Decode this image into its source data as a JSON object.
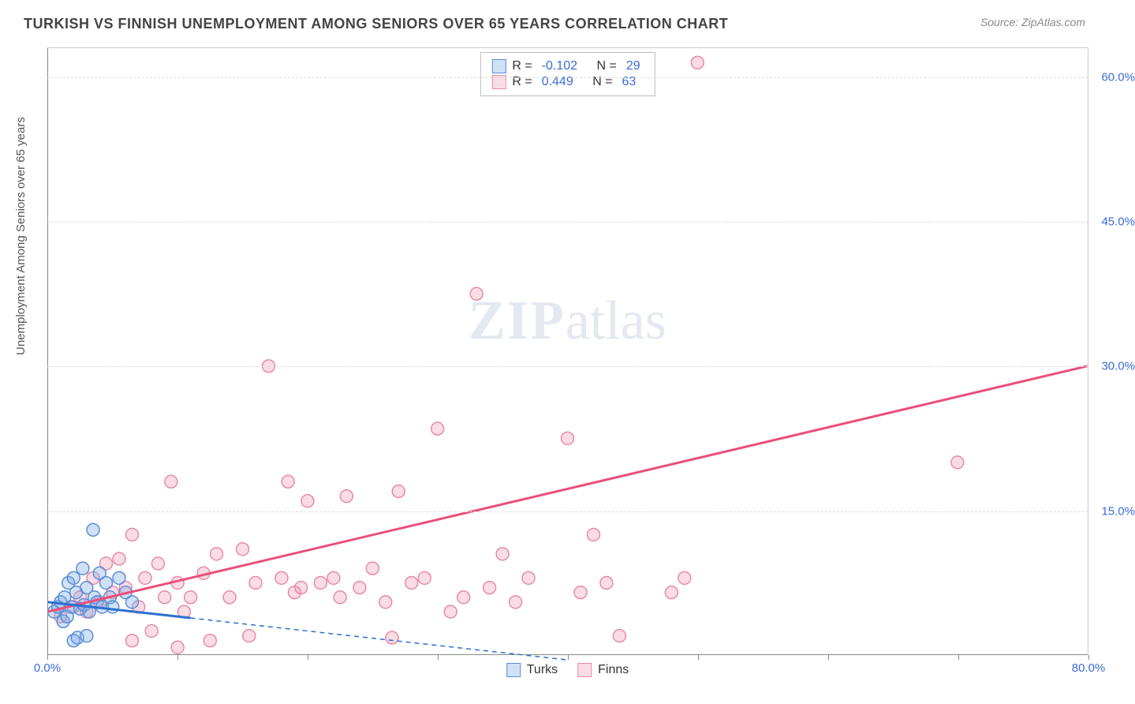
{
  "header": {
    "title": "TURKISH VS FINNISH UNEMPLOYMENT AMONG SENIORS OVER 65 YEARS CORRELATION CHART",
    "source": "Source: ZipAtlas.com"
  },
  "watermark": {
    "zip": "ZIP",
    "atlas": "atlas"
  },
  "chart": {
    "type": "scatter",
    "ylabel": "Unemployment Among Seniors over 65 years",
    "xlim": [
      0,
      80
    ],
    "ylim": [
      0,
      63
    ],
    "xtick_labels": {
      "min": "0.0%",
      "max": "80.0%"
    },
    "xtick_positions": [
      0,
      10,
      20,
      30,
      40,
      50,
      60,
      70,
      80
    ],
    "ytick_labels": [
      "15.0%",
      "30.0%",
      "45.0%",
      "60.0%"
    ],
    "ytick_values": [
      15,
      30,
      45,
      60
    ],
    "background_color": "#ffffff",
    "grid_color": "#dddddd",
    "axis_color": "#888888",
    "tick_label_color": "#3b6bd6",
    "marker_radius": 8,
    "series": {
      "turks": {
        "label": "Turks",
        "fill": "rgba(120,170,230,0.35)",
        "stroke": "#5a8ed8",
        "R": "-0.102",
        "N": "29",
        "trend": {
          "type": "solid-then-dashed",
          "x1": 0,
          "y1": 5.5,
          "x2": 40,
          "y2": -0.5,
          "solid_until_x": 11,
          "color": "#2f6fd0",
          "width": 3
        },
        "points": [
          [
            0.5,
            4.5
          ],
          [
            0.8,
            5.0
          ],
          [
            1.0,
            5.5
          ],
          [
            1.2,
            3.5
          ],
          [
            1.3,
            6.0
          ],
          [
            1.5,
            4.0
          ],
          [
            1.6,
            7.5
          ],
          [
            1.8,
            5.0
          ],
          [
            2.0,
            8.0
          ],
          [
            2.2,
            6.5
          ],
          [
            2.5,
            4.8
          ],
          [
            2.7,
            9.0
          ],
          [
            2.8,
            5.2
          ],
          [
            3.0,
            7.0
          ],
          [
            3.2,
            4.5
          ],
          [
            3.5,
            13.0
          ],
          [
            3.6,
            6.0
          ],
          [
            3.8,
            5.5
          ],
          [
            4.0,
            8.5
          ],
          [
            4.2,
            5.0
          ],
          [
            4.5,
            7.5
          ],
          [
            4.8,
            6.0
          ],
          [
            5.0,
            5.0
          ],
          [
            5.5,
            8.0
          ],
          [
            2.0,
            1.5
          ],
          [
            2.3,
            1.8
          ],
          [
            3.0,
            2.0
          ],
          [
            6.0,
            6.5
          ],
          [
            6.5,
            5.5
          ]
        ]
      },
      "finns": {
        "label": "Finns",
        "fill": "rgba(240,140,170,0.30)",
        "stroke": "#e88aa8",
        "R": "0.449",
        "N": "63",
        "trend": {
          "type": "solid",
          "x1": 0,
          "y1": 4.5,
          "x2": 80,
          "y2": 30.0,
          "color": "#e94f7a",
          "width": 3
        },
        "points": [
          [
            1.0,
            4.0
          ],
          [
            2.0,
            5.0
          ],
          [
            2.5,
            6.0
          ],
          [
            3.0,
            4.5
          ],
          [
            3.5,
            8.0
          ],
          [
            4.0,
            5.5
          ],
          [
            4.5,
            9.5
          ],
          [
            5.0,
            6.5
          ],
          [
            5.5,
            10.0
          ],
          [
            6.0,
            7.0
          ],
          [
            6.5,
            12.5
          ],
          [
            7.0,
            5.0
          ],
          [
            7.5,
            8.0
          ],
          [
            8.0,
            2.5
          ],
          [
            8.5,
            9.5
          ],
          [
            9.0,
            6.0
          ],
          [
            9.5,
            18.0
          ],
          [
            10.0,
            7.5
          ],
          [
            10.5,
            4.5
          ],
          [
            11.0,
            6.0
          ],
          [
            12.0,
            8.5
          ],
          [
            13.0,
            10.5
          ],
          [
            14.0,
            6.0
          ],
          [
            15.0,
            11.0
          ],
          [
            16.0,
            7.5
          ],
          [
            17.0,
            30.0
          ],
          [
            18.0,
            8.0
          ],
          [
            18.5,
            18.0
          ],
          [
            19.0,
            6.5
          ],
          [
            19.5,
            7.0
          ],
          [
            20.0,
            16.0
          ],
          [
            21.0,
            7.5
          ],
          [
            22.0,
            8.0
          ],
          [
            22.5,
            6.0
          ],
          [
            23.0,
            16.5
          ],
          [
            24.0,
            7.0
          ],
          [
            25.0,
            9.0
          ],
          [
            26.0,
            5.5
          ],
          [
            27.0,
            17.0
          ],
          [
            28.0,
            7.5
          ],
          [
            29.0,
            8.0
          ],
          [
            30.0,
            23.5
          ],
          [
            31.0,
            4.5
          ],
          [
            32.0,
            6.0
          ],
          [
            33.0,
            37.5
          ],
          [
            34.0,
            7.0
          ],
          [
            35.0,
            10.5
          ],
          [
            36.0,
            5.5
          ],
          [
            37.0,
            8.0
          ],
          [
            40.0,
            22.5
          ],
          [
            41.0,
            6.5
          ],
          [
            42.0,
            12.5
          ],
          [
            43.0,
            7.5
          ],
          [
            44.0,
            2.0
          ],
          [
            48.0,
            6.5
          ],
          [
            49.0,
            8.0
          ],
          [
            50.0,
            61.5
          ],
          [
            70.0,
            20.0
          ],
          [
            12.5,
            1.5
          ],
          [
            15.5,
            2.0
          ],
          [
            26.5,
            1.8
          ],
          [
            6.5,
            1.5
          ],
          [
            10.0,
            0.8
          ]
        ]
      }
    },
    "legend_top": {
      "r_label": "R =",
      "n_label": "N ="
    },
    "legend_bottom": {
      "items": [
        "turks",
        "finns"
      ]
    }
  }
}
